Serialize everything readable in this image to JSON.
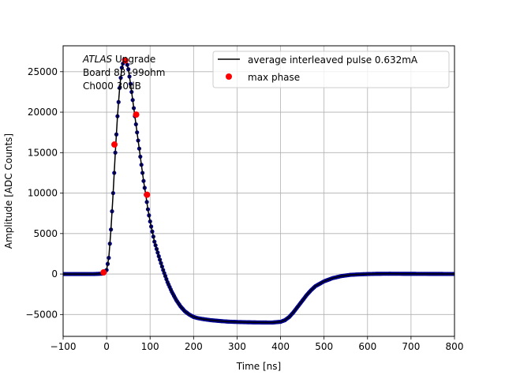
{
  "chart_data": {
    "type": "scatter",
    "xlabel": "Time [ns]",
    "ylabel": "Amplitude [ADC Counts]",
    "xlim": [
      -100,
      800
    ],
    "ylim": [
      -7700,
      28200
    ],
    "xticks": [
      -100,
      0,
      100,
      200,
      300,
      400,
      500,
      600,
      700,
      800
    ],
    "yticks": [
      -5000,
      0,
      5000,
      10000,
      15000,
      20000,
      25000
    ],
    "grid": true,
    "legend_placement": "top-right",
    "annotation": {
      "lines": [
        {
          "italic": "ATLAS",
          "rest": " Upgrade"
        },
        {
          "italic": "",
          "rest": " Board 83 -99ohm"
        },
        {
          "italic": "",
          "rest": " Ch000 30dB"
        }
      ]
    },
    "series": [
      {
        "name": "average interleaved pulse 0.632mA",
        "style": "line-with-markers",
        "color": "#000000",
        "marker_color": "#00008b",
        "x": [
          -100,
          -60,
          -30,
          -10,
          0,
          5,
          10,
          15,
          20,
          25,
          30,
          35,
          40,
          45,
          50,
          55,
          60,
          65,
          70,
          75,
          80,
          85,
          90,
          95,
          100,
          110,
          120,
          130,
          140,
          150,
          160,
          170,
          180,
          190,
          200,
          210,
          220,
          240,
          260,
          280,
          300,
          320,
          340,
          360,
          380,
          400,
          410,
          420,
          430,
          440,
          450,
          460,
          470,
          480,
          500,
          520,
          540,
          560,
          580,
          600,
          620,
          650,
          700,
          750,
          800
        ],
        "y": [
          0,
          0,
          0,
          50,
          500,
          2000,
          5500,
          10000,
          15000,
          19500,
          23000,
          25500,
          26500,
          26400,
          25300,
          23500,
          21500,
          19500,
          17500,
          15500,
          13500,
          11500,
          9800,
          8000,
          6500,
          4000,
          2200,
          500,
          -1000,
          -2200,
          -3200,
          -4000,
          -4600,
          -5000,
          -5300,
          -5450,
          -5550,
          -5700,
          -5800,
          -5880,
          -5920,
          -5950,
          -5970,
          -5980,
          -5990,
          -5900,
          -5700,
          -5300,
          -4700,
          -4000,
          -3300,
          -2600,
          -2000,
          -1500,
          -900,
          -500,
          -250,
          -100,
          -40,
          0,
          30,
          40,
          30,
          20,
          10
        ]
      },
      {
        "name": "max phase",
        "style": "markers",
        "color": "#ff0000",
        "x": [
          -7,
          18,
          43,
          68,
          93
        ],
        "y": [
          200,
          16000,
          26400,
          19700,
          9800
        ]
      }
    ]
  }
}
